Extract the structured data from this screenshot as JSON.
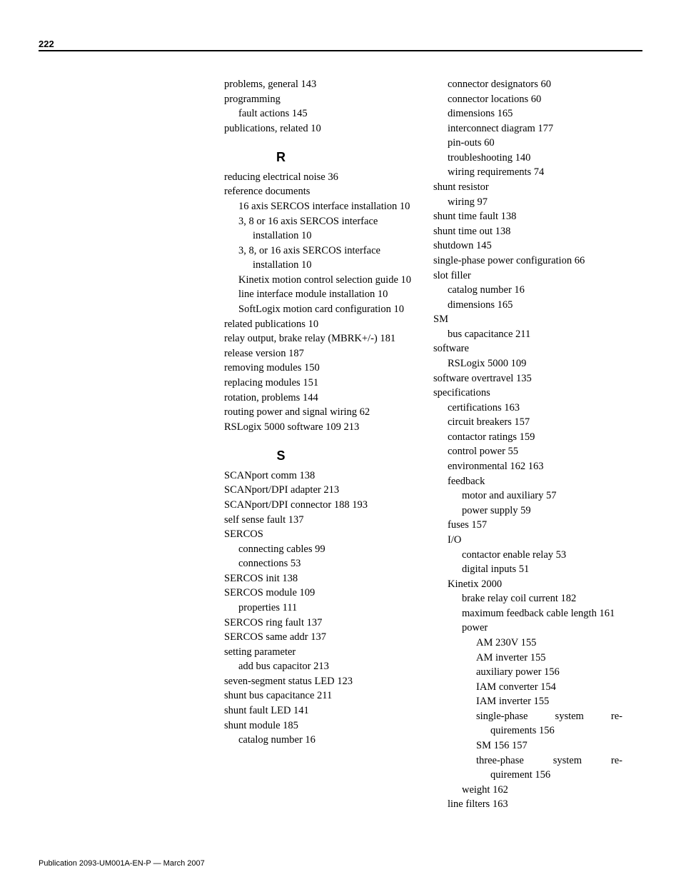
{
  "page_number": "222",
  "footer": "Publication 2093-UM001A-EN-P — March 2007",
  "left_col": [
    {
      "t": "problems, general 143",
      "cls": "l0"
    },
    {
      "t": "programming",
      "cls": "l0"
    },
    {
      "t": "fault actions 145",
      "cls": "l1"
    },
    {
      "t": "publications, related 10",
      "cls": "l0"
    },
    {
      "t": "R",
      "cls": "section-letter"
    },
    {
      "t": "reducing electrical noise 36",
      "cls": "l0"
    },
    {
      "t": "reference documents",
      "cls": "l0"
    },
    {
      "t": "16 axis SERCOS interface installation 10",
      "cls": "hang1"
    },
    {
      "t": "3, 8 or 16 axis SERCOS interface installation 10",
      "cls": "hang1"
    },
    {
      "t": "3, 8, or 16 axis SERCOS interface installation 10",
      "cls": "hang1"
    },
    {
      "t": "Kinetix motion control selection guide 10",
      "cls": "hang1"
    },
    {
      "t": "line interface module installation 10",
      "cls": "hang1"
    },
    {
      "t": "SoftLogix motion card configuration 10",
      "cls": "hang1"
    },
    {
      "t": "related publications 10",
      "cls": "l0"
    },
    {
      "t": "relay output, brake relay (MBRK+/-) 181",
      "cls": "hang0"
    },
    {
      "t": "release version 187",
      "cls": "l0"
    },
    {
      "t": "removing modules 150",
      "cls": "l0"
    },
    {
      "t": "replacing modules 151",
      "cls": "l0"
    },
    {
      "t": "rotation, problems 144",
      "cls": "l0"
    },
    {
      "t": "routing power and signal wiring 62",
      "cls": "l0"
    },
    {
      "t": "RSLogix 5000 software 109  213",
      "cls": "l0"
    },
    {
      "t": "S",
      "cls": "section-letter"
    },
    {
      "t": "SCANport comm 138",
      "cls": "l0"
    },
    {
      "t": "SCANport/DPI adapter 213",
      "cls": "l0"
    },
    {
      "t": "SCANport/DPI connector 188  193",
      "cls": "l0"
    },
    {
      "t": "self sense fault 137",
      "cls": "l0"
    },
    {
      "t": "SERCOS",
      "cls": "l0"
    },
    {
      "t": "connecting cables 99",
      "cls": "l1"
    },
    {
      "t": "connections 53",
      "cls": "l1"
    },
    {
      "t": "SERCOS init 138",
      "cls": "l0"
    },
    {
      "t": "SERCOS module 109",
      "cls": "l0"
    },
    {
      "t": "properties 111",
      "cls": "l1"
    },
    {
      "t": "SERCOS ring fault 137",
      "cls": "l0"
    },
    {
      "t": "SERCOS same addr 137",
      "cls": "l0"
    },
    {
      "t": "setting parameter",
      "cls": "l0"
    },
    {
      "t": "add bus capacitor 213",
      "cls": "l1"
    },
    {
      "t": "seven-segment status LED 123",
      "cls": "l0"
    },
    {
      "t": "shunt bus capacitance 211",
      "cls": "l0"
    },
    {
      "t": "shunt fault LED 141",
      "cls": "l0"
    },
    {
      "t": "shunt module 185",
      "cls": "l0"
    },
    {
      "t": "catalog number 16",
      "cls": "l1"
    }
  ],
  "right_col": [
    {
      "t": "connector designators 60",
      "cls": "l1"
    },
    {
      "t": "connector locations 60",
      "cls": "l1"
    },
    {
      "t": "dimensions 165",
      "cls": "l1"
    },
    {
      "t": "interconnect diagram 177",
      "cls": "l1"
    },
    {
      "t": "pin-outs 60",
      "cls": "l1"
    },
    {
      "t": "troubleshooting 140",
      "cls": "l1"
    },
    {
      "t": "wiring requirements 74",
      "cls": "l1"
    },
    {
      "t": "shunt resistor",
      "cls": "l0"
    },
    {
      "t": "wiring 97",
      "cls": "l1"
    },
    {
      "t": "shunt time fault 138",
      "cls": "l0"
    },
    {
      "t": "shunt time out 138",
      "cls": "l0"
    },
    {
      "t": "shutdown 145",
      "cls": "l0"
    },
    {
      "t": "single-phase power configuration 66",
      "cls": "l0"
    },
    {
      "t": "slot filler",
      "cls": "l0"
    },
    {
      "t": "catalog number 16",
      "cls": "l1"
    },
    {
      "t": "dimensions 165",
      "cls": "l1"
    },
    {
      "t": "SM",
      "cls": "l0"
    },
    {
      "t": "bus capacitance 211",
      "cls": "l1"
    },
    {
      "t": "software",
      "cls": "l0"
    },
    {
      "t": "RSLogix 5000 109",
      "cls": "l1"
    },
    {
      "t": "software overtravel 135",
      "cls": "l0"
    },
    {
      "t": "specifications",
      "cls": "l0"
    },
    {
      "t": "certifications 163",
      "cls": "l1"
    },
    {
      "t": "circuit breakers 157",
      "cls": "l1"
    },
    {
      "t": "contactor ratings 159",
      "cls": "l1"
    },
    {
      "t": "control power 55",
      "cls": "l1"
    },
    {
      "t": "environmental 162  163",
      "cls": "l1"
    },
    {
      "t": "feedback",
      "cls": "l1"
    },
    {
      "t": "motor and auxiliary 57",
      "cls": "l2"
    },
    {
      "t": "power supply 59",
      "cls": "l2"
    },
    {
      "t": "fuses 157",
      "cls": "l1"
    },
    {
      "t": "I/O",
      "cls": "l1"
    },
    {
      "t": "contactor enable relay 53",
      "cls": "l2"
    },
    {
      "t": "digital inputs 51",
      "cls": "l2"
    },
    {
      "t": "Kinetix 2000",
      "cls": "l1"
    },
    {
      "t": "brake relay coil current 182",
      "cls": "l2"
    },
    {
      "t": "maximum feedback cable length 161",
      "cls": "l2"
    },
    {
      "t": "power",
      "cls": "l2"
    },
    {
      "t": "AM 230V 155",
      "cls": "l3"
    },
    {
      "t": "AM inverter 155",
      "cls": "l3"
    },
    {
      "t": "auxiliary power 156",
      "cls": "l3"
    },
    {
      "t": "IAM converter 154",
      "cls": "l3"
    },
    {
      "t": "IAM inverter 155",
      "cls": "l3"
    },
    {
      "t": "single-phase system re-",
      "cls": "l3 justify"
    },
    {
      "t": "quirements 156",
      "cls": "l4"
    },
    {
      "t": "SM 156  157",
      "cls": "l3"
    },
    {
      "t": "three-phase system re-",
      "cls": "l3 justify"
    },
    {
      "t": "quirement 156",
      "cls": "l4"
    },
    {
      "t": "weight 162",
      "cls": "l2"
    },
    {
      "t": "line filters 163",
      "cls": "l1"
    }
  ]
}
